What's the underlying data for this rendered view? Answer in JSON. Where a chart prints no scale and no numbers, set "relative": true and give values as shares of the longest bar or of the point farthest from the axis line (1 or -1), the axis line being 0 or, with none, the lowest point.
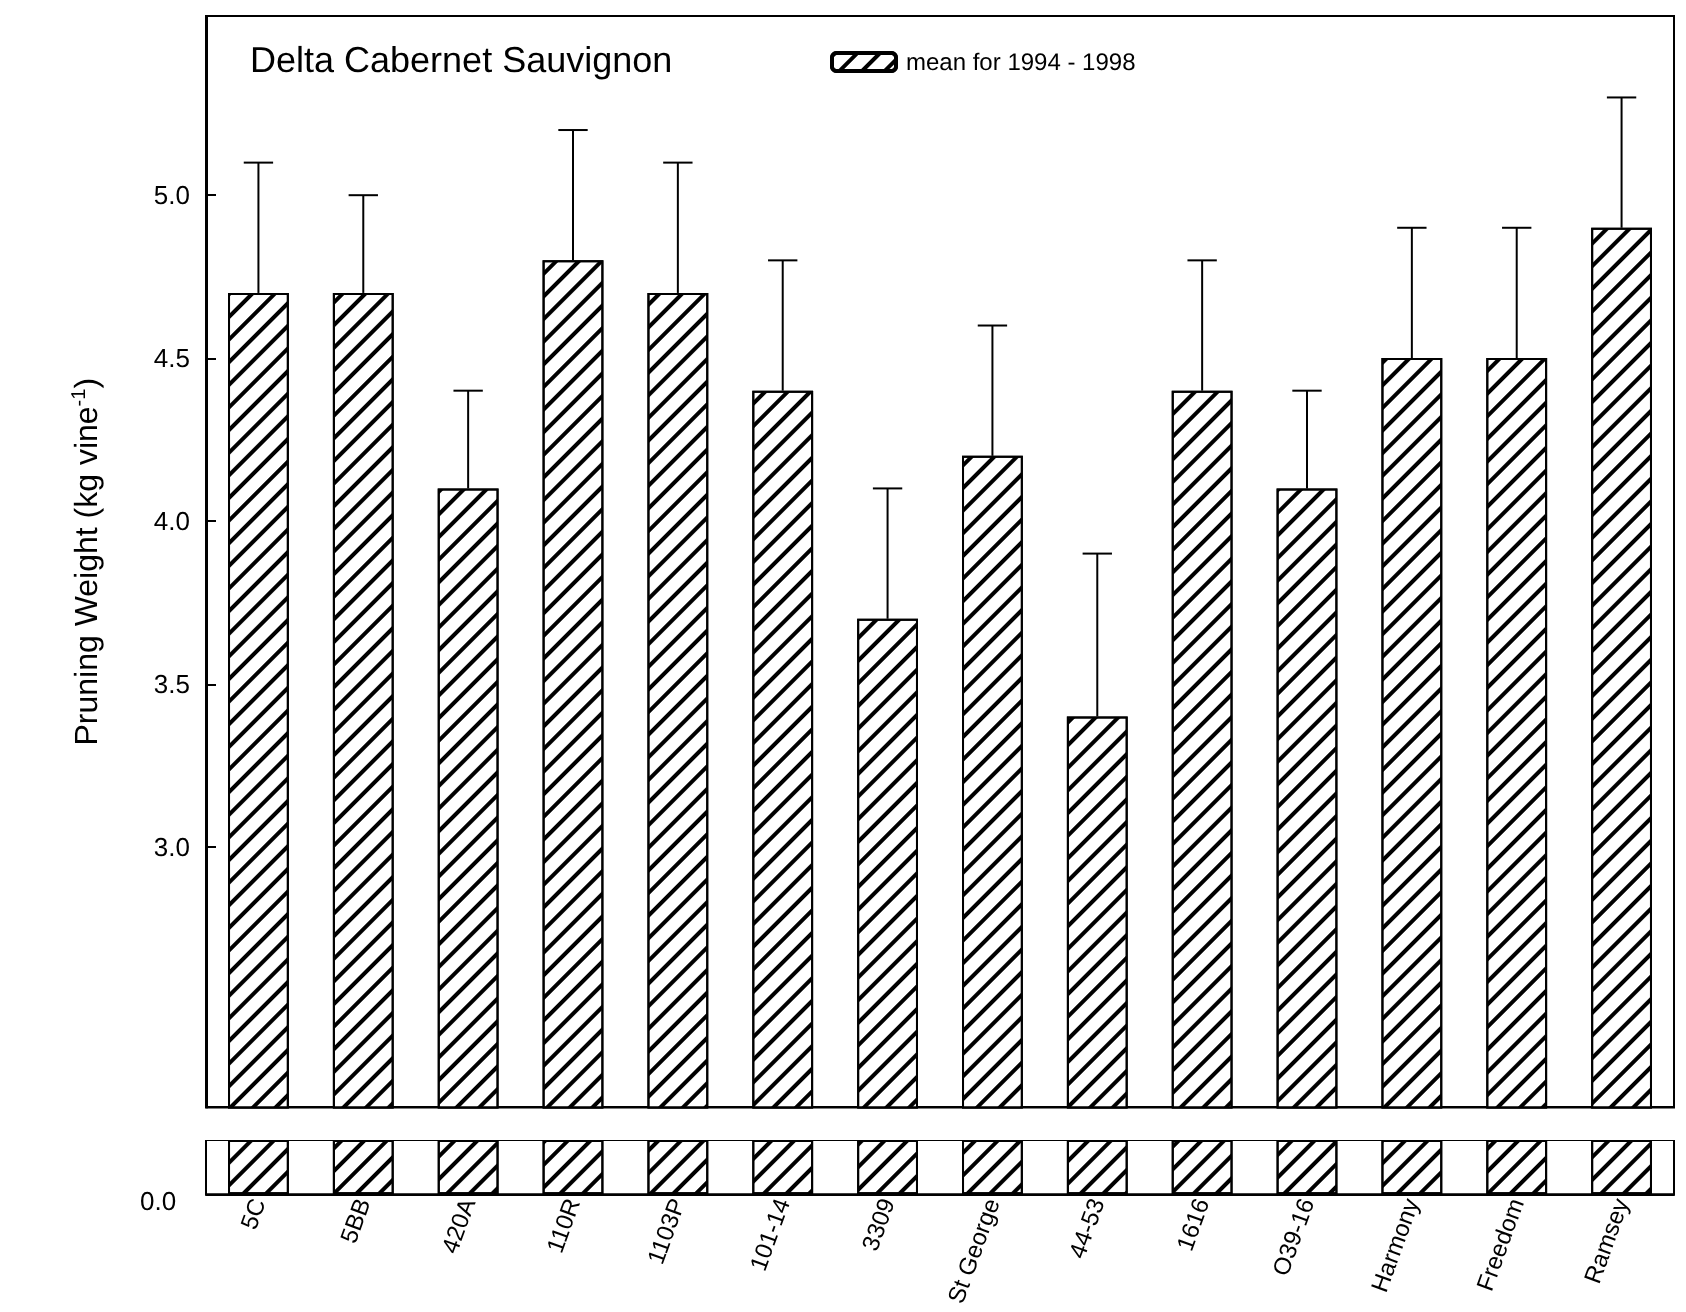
{
  "chart_data": [
    {
      "type": "bar",
      "title": "Delta Cabernet Sauvignon",
      "ylabel": "Pruning Weight (kg vine$^{-1}$)",
      "categories": [
        "5C",
        "5BB",
        "420A",
        "110R",
        "1103P",
        "101-14",
        "3309",
        "St George",
        "44-53",
        "1616",
        "O39-16",
        "Harmony",
        "Freedom",
        "Ramsey"
      ],
      "series": [
        {
          "name": "mean for 1994 - 1998",
          "color": "#ffffff",
          "values": [
            4.7,
            4.7,
            4.1,
            4.8,
            4.7,
            4.4,
            3.7,
            4.2,
            3.4,
            4.4,
            4.1,
            4.5,
            4.5,
            4.9
          ],
          "errors": [
            [
              4.7,
              5.1
            ],
            [
              4.7,
              5.0
            ],
            [
              4.1,
              4.4
            ],
            [
              4.8,
              5.2
            ],
            [
              4.7,
              5.1
            ],
            [
              4.4,
              4.8
            ],
            [
              3.7,
              4.1
            ],
            [
              4.2,
              4.6
            ],
            [
              3.4,
              3.9
            ],
            [
              4.4,
              4.8
            ],
            [
              4.1,
              4.4
            ],
            [
              4.5,
              4.9
            ],
            [
              4.5,
              4.9
            ],
            [
              4.9,
              5.3
            ]
          ]
        }
      ],
      "ylim": [
        2.2,
        5.55
      ],
      "yticks": [
        {
          "value": 3,
          "label": "3.0"
        },
        {
          "value": 3.5,
          "label": "3.5"
        },
        {
          "value": 4,
          "label": "4.0"
        },
        {
          "value": 4.5,
          "label": "4.5"
        },
        {
          "value": 5,
          "label": "5.0"
        }
      ],
      "legend": "top",
      "grid": false
    },
    {
      "type": "bar",
      "categories": [
        null,
        null,
        null,
        null,
        null,
        null,
        null,
        null,
        null,
        null,
        null,
        null,
        null,
        null
      ],
      "series": [
        {
          "color": "#ffffff",
          "values": [
            1,
            1,
            1,
            1,
            1,
            1,
            1,
            1,
            1,
            1,
            1,
            1,
            1,
            1
          ]
        }
      ],
      "relative": true,
      "annotations": [
        "0.0"
      ],
      "grid": false
    }
  ]
}
